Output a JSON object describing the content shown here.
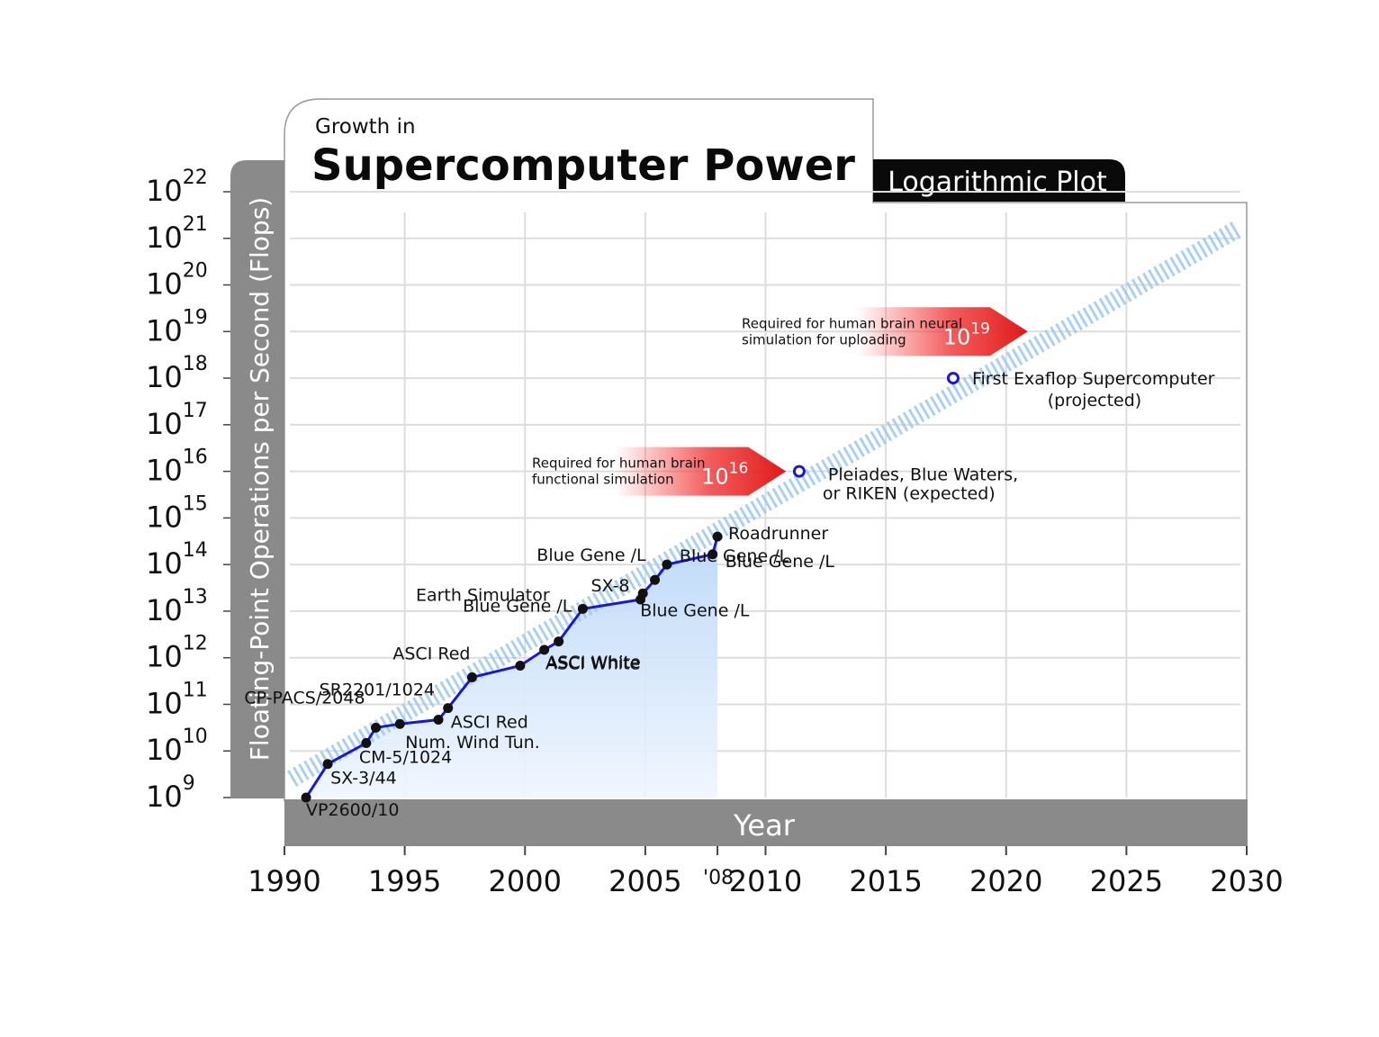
{
  "header": {
    "pretitle": "Growth in",
    "title": "Supercomputer Power",
    "badge": "Logarithmic Plot"
  },
  "chart_data": {
    "type": "line",
    "title": "Supercomputer Power",
    "subtitle": "Growth in",
    "xlabel": "Year",
    "ylabel": "Floating-Point Operations per Second (Flops)",
    "yscale": "log",
    "xlim": [
      1990,
      2030
    ],
    "ylim_exponent": [
      9,
      22
    ],
    "x_ticks": [
      1990,
      1995,
      2000,
      2005,
      2010,
      2015,
      2020,
      2025,
      2030
    ],
    "x_tick_extra": {
      "x": 2008,
      "label": "'08"
    },
    "y_tick_base": "10",
    "y_tick_exponents": [
      9,
      10,
      11,
      12,
      13,
      14,
      15,
      16,
      17,
      18,
      19,
      20,
      21,
      22
    ],
    "grid": true,
    "series": [
      {
        "color": "#1a1acc",
        "points": [
          {
            "x": 1990.9,
            "exp": 9.0,
            "label": "VP2600/10"
          },
          {
            "x": 1991.8,
            "exp": 9.72,
            "label": "SX-3/44"
          },
          {
            "x": 1993.4,
            "exp": 10.17,
            "label": "CM-5/1024"
          },
          {
            "x": 1993.8,
            "exp": 10.5,
            "label": "CP-PACS/2048"
          },
          {
            "x": 1994.8,
            "exp": 10.58,
            "label": "Num. Wind Tun."
          },
          {
            "x": 1996.4,
            "exp": 10.67,
            "label": "SR2201/1024"
          },
          {
            "x": 1996.8,
            "exp": 10.92,
            "label": "ASCI Red"
          },
          {
            "x": 1997.8,
            "exp": 11.58,
            "label": "ASCI Red"
          },
          {
            "x": 1999.8,
            "exp": 11.83,
            "label": "ASCI White"
          },
          {
            "x": 2000.8,
            "exp": 12.17,
            "label": "ASCI White"
          },
          {
            "x": 2001.4,
            "exp": 12.35,
            "label": "Earth Simulator"
          },
          {
            "x": 2002.4,
            "exp": 13.05,
            "label": "Blue Gene /L"
          },
          {
            "x": 2004.8,
            "exp": 13.25,
            "label": "SX-8"
          },
          {
            "x": 2004.9,
            "exp": 13.38,
            "label": "Blue Gene /L"
          },
          {
            "x": 2005.4,
            "exp": 13.67,
            "label": "Blue Gene /L"
          },
          {
            "x": 2005.9,
            "exp": 14.0,
            "label": "Blue Gene /L"
          },
          {
            "x": 2007.8,
            "exp": 14.22,
            "label": "Blue Gene /L"
          },
          {
            "x": 2008.0,
            "exp": 14.6,
            "label": "Roadrunner"
          }
        ]
      }
    ],
    "trend": {
      "from": {
        "x": 1990.3,
        "exp": 9.4
      },
      "to": {
        "x": 2029.6,
        "exp": 21.2
      }
    },
    "projected_points": [
      {
        "x": 2011.4,
        "exp": 16.0,
        "label_line1": "Pleiades, Blue Waters,",
        "label_line2": "or RIKEN (expected)"
      },
      {
        "x": 2017.8,
        "exp": 18.0,
        "label_line1": "First Exaflop Supercomputer",
        "label_line2": "(projected)"
      }
    ],
    "thresholds": [
      {
        "exp": 16,
        "value_base": "10",
        "value_exponent": "16",
        "line1": "Required for human brain",
        "line2": "functional simulation"
      },
      {
        "exp": 19,
        "value_base": "10",
        "value_exponent": "19",
        "line1": "Required for human brain neural",
        "line2": "simulation for uploading"
      }
    ],
    "colors": {
      "line": "#1a1acc",
      "gridline": "#dddddd",
      "axis_band": "#8a8a8a",
      "threshold": "#e02020",
      "trend": "#9ec8f0",
      "fill": "#cfe3fa"
    }
  }
}
